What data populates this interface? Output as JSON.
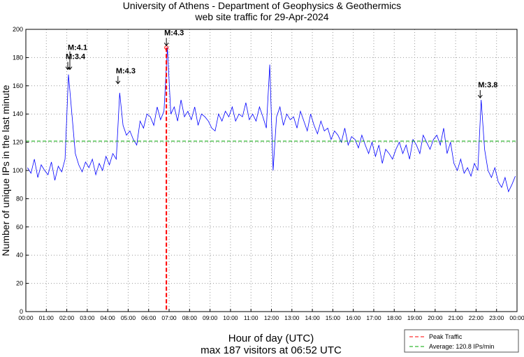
{
  "chart_data": {
    "type": "line",
    "title": "University of Athens - Department of Geophysics & Geothermics",
    "subtitle": "web site traffic for 29-Apr-2024",
    "xlabel": "Hour of day (UTC)",
    "xlabel2": "max 187 visitors at 06:52 UTC",
    "ylabel": "Number of unique IPs in the last minute",
    "ylim": [
      0,
      200
    ],
    "yticks": [
      "0",
      "20",
      "40",
      "60",
      "80",
      "100",
      "120",
      "140",
      "160",
      "180",
      "200"
    ],
    "xticks": [
      "00:00",
      "01:00",
      "02:00",
      "03:00",
      "04:00",
      "05:00",
      "06:00",
      "07:00",
      "08:00",
      "09:00",
      "10:00",
      "11:00",
      "12:00",
      "13:00",
      "14:00",
      "15:00",
      "16:00",
      "17:00",
      "18:00",
      "19:00",
      "20:00",
      "21:00",
      "22:00",
      "23:00",
      "00:00"
    ],
    "xlim_hours": [
      0,
      24
    ],
    "grid": true,
    "series": [
      {
        "name": "traffic",
        "color": "#0000ff",
        "x_step_minutes": 10,
        "values": [
          102,
          98,
          108,
          95,
          104,
          100,
          97,
          106,
          93,
          103,
          99,
          108,
          168,
          140,
          112,
          104,
          99,
          106,
          102,
          108,
          97,
          105,
          100,
          110,
          104,
          112,
          108,
          155,
          132,
          125,
          128,
          122,
          118,
          135,
          130,
          140,
          138,
          132,
          145,
          136,
          142,
          187,
          140,
          145,
          135,
          150,
          138,
          142,
          136,
          145,
          132,
          140,
          138,
          135,
          130,
          128,
          140,
          135,
          142,
          138,
          145,
          135,
          140,
          138,
          148,
          136,
          140,
          135,
          145,
          138,
          130,
          175,
          100,
          138,
          145,
          132,
          140,
          136,
          138,
          130,
          142,
          135,
          128,
          140,
          132,
          126,
          135,
          128,
          130,
          122,
          128,
          125,
          120,
          130,
          118,
          124,
          122,
          116,
          125,
          118,
          112,
          120,
          110,
          118,
          105,
          115,
          112,
          108,
          115,
          120,
          112,
          118,
          108,
          122,
          118,
          112,
          125,
          120,
          115,
          122,
          125,
          118,
          130,
          112,
          120,
          105,
          100,
          108,
          98,
          102,
          96,
          105,
          100,
          150,
          115,
          100,
          95,
          102,
          92,
          88,
          95,
          85,
          90,
          96
        ]
      }
    ],
    "peak": {
      "time_hours": 6.867,
      "value": 187,
      "color": "#ff0000"
    },
    "average": {
      "value": 120.8,
      "color": "#00aa00"
    },
    "annotations": [
      {
        "label": "M:3.4",
        "time_hours": 2.05,
        "value": 170
      },
      {
        "label": "M:4.1",
        "time_hours": 2.15,
        "value": 170
      },
      {
        "label": "M:4.3",
        "time_hours": 4.5,
        "value": 160
      },
      {
        "label": "M:4.3",
        "time_hours": 6.867,
        "value": 187
      },
      {
        "label": "M:3.8",
        "time_hours": 22.2,
        "value": 150
      }
    ],
    "legend": {
      "position": "bottom-right",
      "items": [
        "Peak Traffic",
        "Average: 120.8 IPs/min"
      ]
    }
  }
}
